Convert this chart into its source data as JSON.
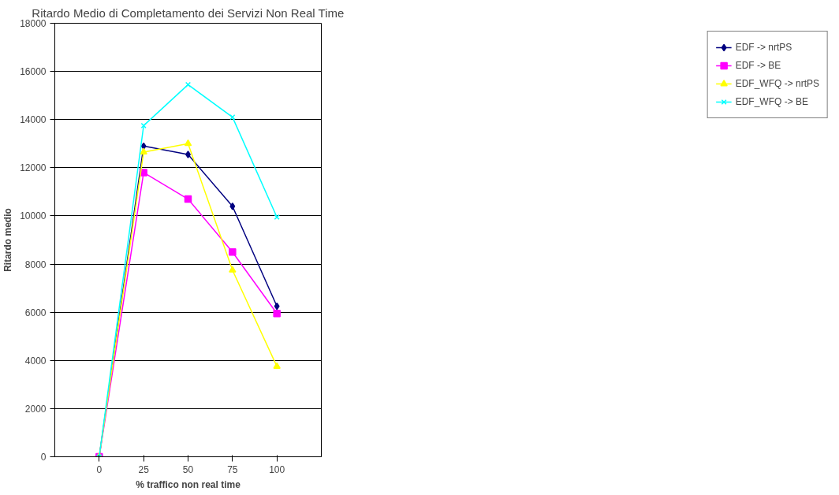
{
  "chart_data": {
    "type": "line",
    "title": "Ritardo Medio di Completamento dei Servizi Non Real Time",
    "xlabel": "% traffico non real time",
    "ylabel": "Ritardo medio",
    "categories": [
      "0",
      "25",
      "50",
      "75",
      "100"
    ],
    "series": [
      {
        "name": "EDF -> nrtPS",
        "color": "#000080",
        "marker": "diamond",
        "values": [
          0,
          12900,
          12550,
          10400,
          6250
        ]
      },
      {
        "name": "EDF -> BE",
        "color": "#ff00ff",
        "marker": "square",
        "values": [
          0,
          11800,
          10700,
          8500,
          5950
        ]
      },
      {
        "name": "EDF_WFQ -> nrtPS",
        "color": "#ffff00",
        "marker": "triangle",
        "values": [
          0,
          12650,
          13000,
          7750,
          3750
        ]
      },
      {
        "name": "EDF_WFQ -> BE",
        "color": "#00ffff",
        "marker": "cross",
        "values": [
          0,
          13750,
          15450,
          14100,
          9950
        ]
      }
    ],
    "ylim": [
      0,
      18000
    ],
    "yticks": [
      0,
      2000,
      4000,
      6000,
      8000,
      10000,
      12000,
      14000,
      16000,
      18000
    ],
    "grid": "y",
    "legend": "right",
    "line_style": "solid"
  }
}
